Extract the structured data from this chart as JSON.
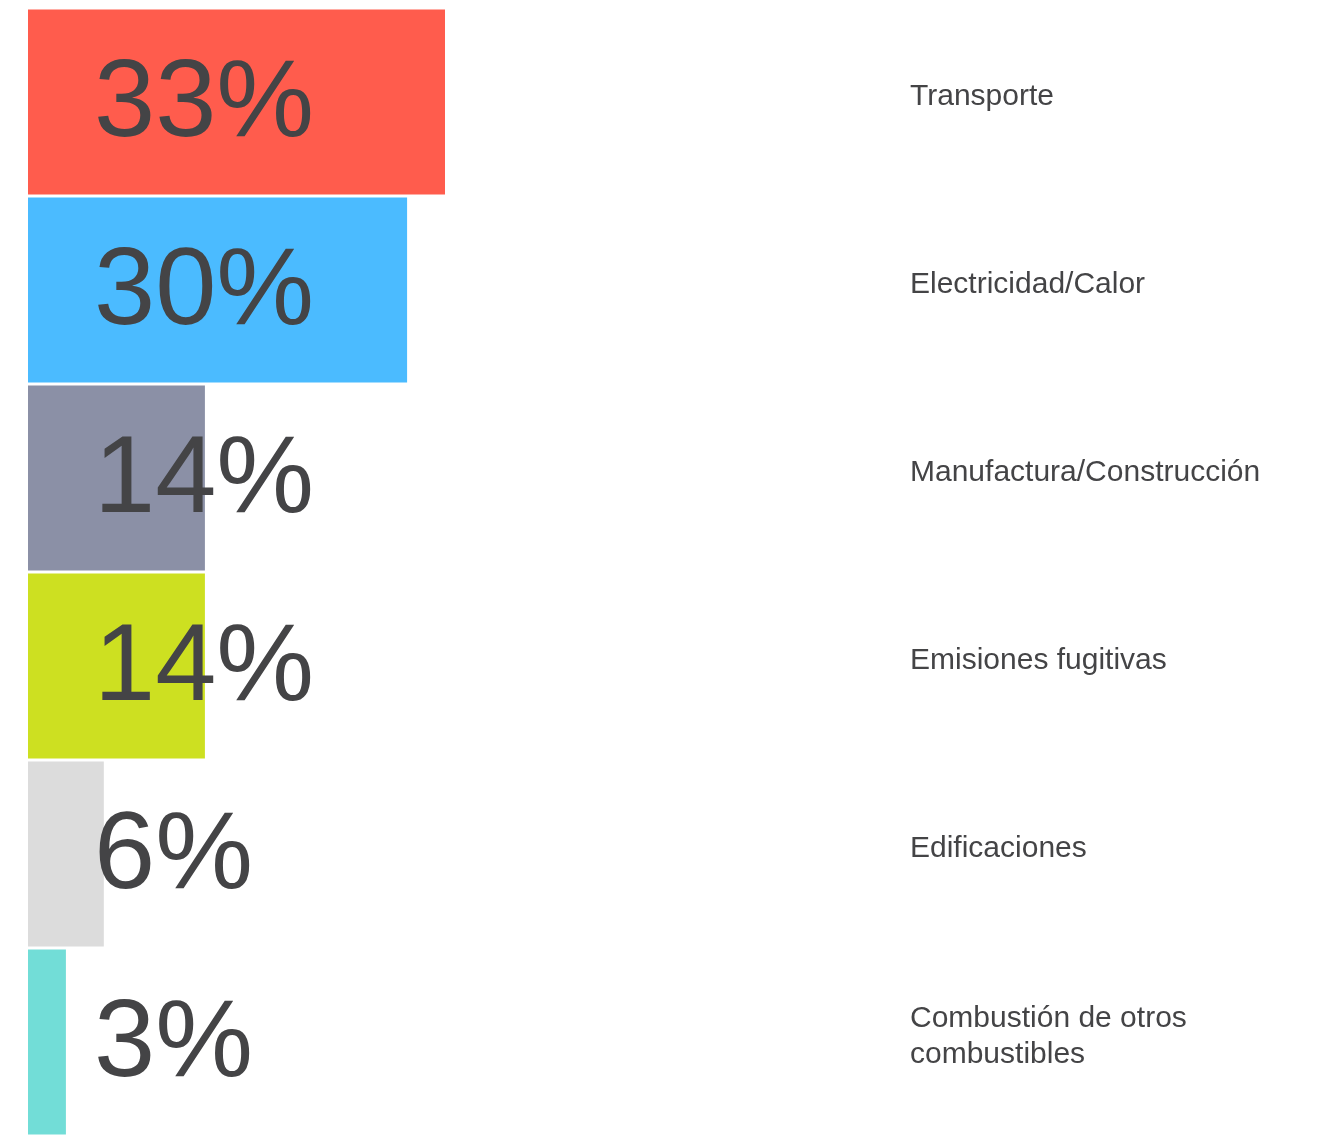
{
  "chart_data": {
    "type": "bar",
    "orientation": "horizontal",
    "categories": [
      "Transporte",
      "Electricidad/Calor",
      "Manufactura/Construcción",
      "Emisiones fugitivas",
      "Edificaciones",
      "Combustión de otros combustibles"
    ],
    "values": [
      33,
      30,
      14,
      14,
      6,
      3
    ],
    "colors": [
      "#ff5c4d",
      "#4bbbff",
      "#8b90a6",
      "#cde021",
      "#dcdcdc",
      "#72ddd7"
    ],
    "value_labels": [
      "33%",
      "30%",
      "14%",
      "14%",
      "6%",
      "3%"
    ],
    "legend": false,
    "tick_labels": false
  }
}
